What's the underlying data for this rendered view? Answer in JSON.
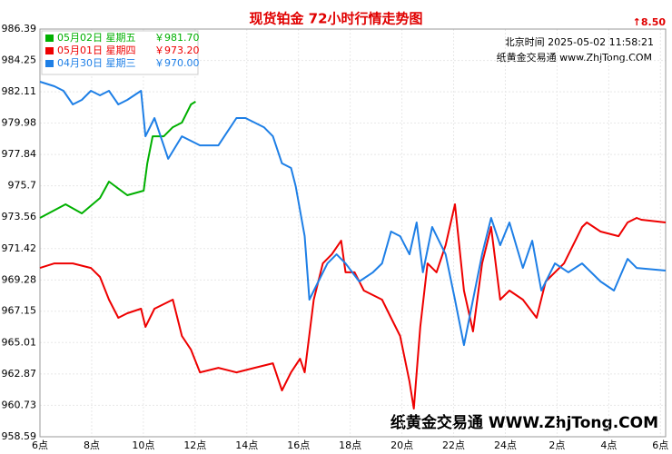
{
  "chart_data": {
    "type": "line",
    "title": "现货铂金 72小时行情走势图",
    "change": "↑8.50",
    "time_text": "北京时间 2025-05-02 11:58:21",
    "source_text": "纸黄金交易通 www.ZhjTong.COM",
    "watermark": "纸黄金交易通 WWW.ZhjTong.COM",
    "xlim": [
      0,
      24.2
    ],
    "xticks": [
      {
        "value": 0,
        "label": "6点"
      },
      {
        "value": 2,
        "label": "8点"
      },
      {
        "value": 4,
        "label": "10点"
      },
      {
        "value": 6,
        "label": "12点"
      },
      {
        "value": 8,
        "label": "14点"
      },
      {
        "value": 10,
        "label": "16点"
      },
      {
        "value": 12,
        "label": "18点"
      },
      {
        "value": 14,
        "label": "20点"
      },
      {
        "value": 16,
        "label": "22点"
      },
      {
        "value": 18,
        "label": "24点"
      },
      {
        "value": 20,
        "label": "2点"
      },
      {
        "value": 22,
        "label": "4点"
      },
      {
        "value": 24,
        "label": "6点"
      }
    ],
    "ylim": [
      958.59,
      986.39
    ],
    "yticks": [
      958.59,
      960.73,
      962.87,
      965.01,
      967.15,
      969.28,
      971.42,
      973.56,
      975.7,
      977.84,
      979.98,
      982.11,
      984.25,
      986.39
    ],
    "grid": true,
    "series": [
      {
        "name": "05月02日 星期五",
        "latest": {
          "value": 981.7,
          "label": "￥981.70"
        },
        "color": "#00b000",
        "x": [
          0,
          0.99,
          1.62,
          2.32,
          2.67,
          3.38,
          4.01,
          4.15,
          4.36,
          4.79,
          5.14,
          5.49,
          5.84,
          6.02
        ],
        "values": [
          973.51,
          974.44,
          973.82,
          974.87,
          975.99,
          975.06,
          975.37,
          977.23,
          979.08,
          979.08,
          979.7,
          980.01,
          981.25,
          981.44
        ]
      },
      {
        "name": "05月01日 星期四",
        "latest": {
          "value": 973.2,
          "label": "￥973.20"
        },
        "color": "#ee0000",
        "x": [
          0,
          0.56,
          1.27,
          1.97,
          2.32,
          2.67,
          3.03,
          3.38,
          3.91,
          4.08,
          4.43,
          5.14,
          5.49,
          5.84,
          6.19,
          6.9,
          7.6,
          8.3,
          9.01,
          9.36,
          9.71,
          10.06,
          10.24,
          10.59,
          10.94,
          11.29,
          11.65,
          11.82,
          12.17,
          12.53,
          13.23,
          13.58,
          13.93,
          14.29,
          14.46,
          14.71,
          14.99,
          15.34,
          15.69,
          16.05,
          16.4,
          16.75,
          17.1,
          17.45,
          17.8,
          18.16,
          18.68,
          19.21,
          19.56,
          20.27,
          20.97,
          21.15,
          21.68,
          22.38,
          22.73,
          23.08,
          23.26,
          24.2
        ],
        "values": [
          970.1,
          970.41,
          970.41,
          970.1,
          969.49,
          967.94,
          966.7,
          967.01,
          967.32,
          966.08,
          967.32,
          967.94,
          965.46,
          964.53,
          962.98,
          963.29,
          962.98,
          963.29,
          963.6,
          961.75,
          962.98,
          963.91,
          962.98,
          967.94,
          970.41,
          971.03,
          971.96,
          969.8,
          969.8,
          968.56,
          967.94,
          966.7,
          965.46,
          962.36,
          960.51,
          966.08,
          970.41,
          969.8,
          971.65,
          974.44,
          968.56,
          965.77,
          970.41,
          972.89,
          967.94,
          968.56,
          967.94,
          966.7,
          969.18,
          970.41,
          972.89,
          973.2,
          972.58,
          972.27,
          973.2,
          973.51,
          973.39,
          973.2
        ]
      },
      {
        "name": "04月30日 星期三",
        "latest": {
          "value": 970.0,
          "label": "￥970.00"
        },
        "color": "#1e7fe6",
        "x": [
          0,
          0.56,
          0.91,
          1.27,
          1.62,
          1.97,
          2.32,
          2.67,
          3.03,
          3.38,
          3.91,
          4.08,
          4.43,
          4.96,
          5.49,
          6.19,
          6.9,
          7.25,
          7.6,
          7.95,
          8.66,
          9.01,
          9.36,
          9.71,
          9.89,
          10.24,
          10.42,
          10.77,
          11.12,
          11.47,
          11.82,
          12.35,
          12.88,
          13.23,
          13.58,
          13.93,
          14.29,
          14.57,
          14.81,
          15.17,
          15.69,
          16.05,
          16.4,
          16.75,
          17.1,
          17.45,
          17.8,
          18.16,
          18.68,
          19.04,
          19.39,
          19.92,
          20.44,
          20.97,
          21.68,
          22.2,
          22.73,
          23.08,
          24.2
        ],
        "values": [
          982.8,
          982.49,
          982.18,
          981.25,
          981.56,
          982.18,
          981.87,
          982.18,
          981.25,
          981.56,
          982.18,
          979.08,
          980.32,
          977.54,
          979.08,
          978.46,
          978.46,
          979.39,
          980.32,
          980.32,
          979.7,
          979.08,
          977.23,
          976.92,
          975.68,
          972.27,
          967.94,
          969.18,
          970.41,
          971.03,
          970.41,
          969.18,
          969.8,
          970.41,
          972.58,
          972.27,
          971.03,
          973.2,
          969.8,
          972.89,
          971.03,
          967.94,
          964.84,
          967.94,
          971.03,
          973.51,
          971.65,
          973.2,
          970.1,
          971.96,
          968.56,
          970.41,
          969.8,
          970.41,
          969.18,
          968.56,
          970.72,
          970.1,
          969.92
        ]
      }
    ]
  }
}
